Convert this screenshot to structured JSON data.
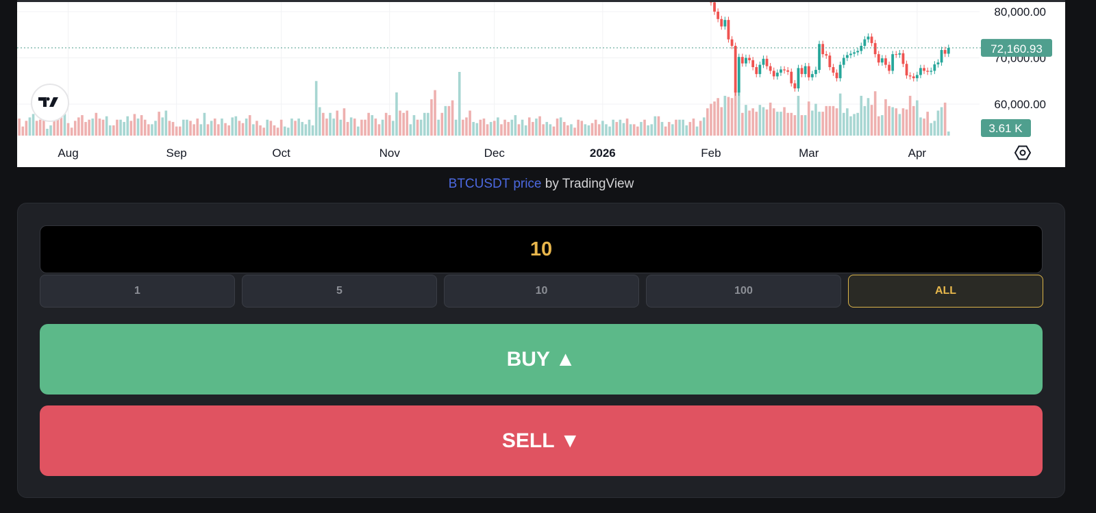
{
  "attribution": {
    "link_text": "BTCUSDT price",
    "suffix": " by TradingView"
  },
  "order": {
    "amount_value": "10",
    "quick_amounts": [
      "1",
      "5",
      "10",
      "100",
      "ALL"
    ],
    "selected_quick": "ALL",
    "buy_label": "BUY",
    "buy_icon": "triangle-up",
    "sell_label": "SELL",
    "sell_icon": "triangle-down"
  },
  "colors": {
    "up": "#26a69a",
    "down": "#ef5350",
    "up_volume": "#a7d6d2",
    "down_volume": "#eeb0af",
    "accent": "#e8b64c",
    "buy": "#5cb989",
    "sell": "#e05361",
    "price_label": "#4f9f8e"
  },
  "chart_data": {
    "type": "candlestick",
    "symbol": "BTCUSDT",
    "interval": "1D",
    "price_axis": {
      "ticks": [
        {
          "value": 80000,
          "label": "80,000.00"
        },
        {
          "value": 70000,
          "label": "70,000.00"
        },
        {
          "value": 60000,
          "label": "60,000.00"
        }
      ]
    },
    "time_axis": {
      "ticks": [
        {
          "date": "2025-08-01",
          "label": "Aug",
          "bold": false
        },
        {
          "date": "2025-09-01",
          "label": "Sep",
          "bold": false
        },
        {
          "date": "2025-10-01",
          "label": "Oct",
          "bold": false
        },
        {
          "date": "2025-11-01",
          "label": "Nov",
          "bold": false
        },
        {
          "date": "2025-12-01",
          "label": "Dec",
          "bold": false
        },
        {
          "date": "2026-01-01",
          "label": "2026",
          "bold": true
        },
        {
          "date": "2026-02-01",
          "label": "Feb",
          "bold": false
        },
        {
          "date": "2026-03-01",
          "label": "Mar",
          "bold": false
        },
        {
          "date": "2026-04-01",
          "label": "Apr",
          "bold": false
        }
      ]
    },
    "last_price": 72160.93,
    "last_price_label": "72,160.93",
    "last_volume_label": "3.61 K",
    "grid": true,
    "candles": {
      "first_date": "2026-02-01",
      "first_open": 84500,
      "close": [
        82000,
        80000,
        78400,
        76800,
        78200,
        74000,
        72600,
        62500,
        70200,
        68800,
        70000,
        69500,
        68000,
        66500,
        68500,
        69800,
        68200,
        67200,
        66000,
        66800,
        67500,
        67300,
        67000,
        64500,
        63400,
        67800,
        66500,
        68200,
        65800,
        66500,
        67400,
        73000,
        70800,
        70500,
        68000,
        66800,
        65600,
        68500,
        70000,
        70600,
        70900,
        71200,
        71500,
        72600,
        74000,
        74600,
        73200,
        70800,
        69000,
        69900,
        68500,
        67200,
        70800,
        70700,
        71000,
        68700,
        66200,
        66000,
        65600,
        66300,
        67800,
        67200,
        67000,
        67200,
        68600,
        69000,
        71700,
        70900,
        72160.93
      ]
    },
    "volume": {
      "first_date": "2025-07-18",
      "unit": "K",
      "values": [
        15,
        8,
        13,
        16,
        19,
        13,
        14,
        16,
        6,
        9,
        14,
        15,
        16,
        19,
        11,
        7,
        13,
        16,
        18,
        12,
        14,
        15,
        20,
        15,
        14,
        17,
        9,
        9,
        14,
        14,
        12,
        17,
        13,
        19,
        15,
        18,
        14,
        10,
        10,
        13,
        21,
        16,
        22,
        13,
        12,
        8,
        8,
        14,
        14,
        13,
        10,
        15,
        10,
        20,
        10,
        13,
        15,
        10,
        15,
        11,
        9,
        16,
        17,
        13,
        11,
        15,
        18,
        10,
        13,
        9,
        7,
        14,
        13,
        9,
        7,
        14,
        8,
        7,
        15,
        13,
        15,
        12,
        10,
        14,
        9,
        48,
        25,
        20,
        15,
        20,
        15,
        22,
        14,
        24,
        12,
        16,
        15,
        8,
        14,
        14,
        20,
        18,
        15,
        10,
        14,
        20,
        18,
        13,
        38,
        22,
        20,
        22,
        10,
        18,
        14,
        14,
        20,
        20,
        32,
        40,
        14,
        20,
        26,
        26,
        31,
        14,
        56,
        14,
        16,
        22,
        12,
        11,
        14,
        15,
        10,
        12,
        13,
        16,
        10,
        14,
        12,
        14,
        18,
        10,
        14,
        9,
        16,
        12,
        15,
        17,
        10,
        12,
        10,
        8,
        15,
        16,
        12,
        9,
        10,
        7,
        14,
        13,
        10,
        9,
        11,
        14,
        10,
        13,
        10,
        8,
        14,
        12,
        14,
        11,
        15,
        10,
        10,
        8,
        12,
        14,
        9,
        10,
        17,
        17,
        12,
        8,
        12,
        10,
        14,
        14,
        14,
        9,
        12,
        15,
        8,
        13,
        16,
        24,
        28,
        30,
        33,
        25,
        35,
        34,
        33,
        42,
        40,
        20,
        27,
        22,
        24,
        21,
        27,
        25,
        23,
        29,
        24,
        21,
        21,
        25,
        20,
        20,
        18,
        35,
        18,
        18,
        30,
        22,
        28,
        21,
        21,
        26,
        26,
        26,
        24,
        37,
        20,
        24,
        17,
        19,
        20,
        35,
        26,
        33,
        27,
        39,
        17,
        18,
        32,
        26,
        25,
        24,
        19,
        24,
        23,
        35,
        26,
        31,
        16,
        15,
        21,
        11,
        13,
        22,
        25,
        29,
        3.61
      ],
      "direction_before_candles": "DDDUUDDDUUDDDU DDDDDDDUDDDUUDDUUUDDUDDDUUDUUDDDD UUDDDUUDUDDUDDUUDDUDUDDDUDDDD UUUDUUUUUUUDDUUDUDDUDUDDDUDDUDD UUDDDUUDUUUDDUDUDDUUDDDUUDDDUD UDDDUUDUUDDUDDUUDDUDDUDDDUUDDDU UUUDUUDUDDUDUUUDUDDUDUUUDDUDUDD"
    }
  }
}
